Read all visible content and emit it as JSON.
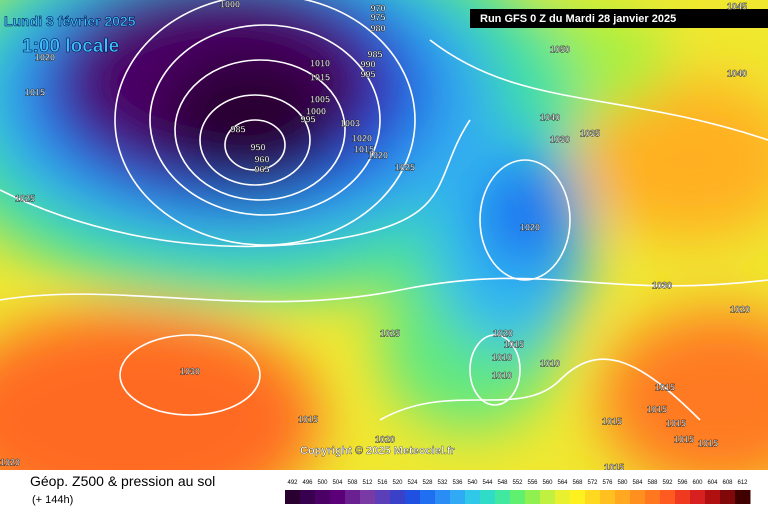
{
  "header": {
    "date": "Lundi 3 février 2025",
    "time": "1:00 locale",
    "run": "Run GFS 0 Z du Mardi 28 janvier 2025"
  },
  "copyright": "Copyright © 2025 Meteociel.fr",
  "footer": {
    "title": "Géop. Z500 & pression au sol",
    "subtitle": "(+ 144h)"
  },
  "legend": {
    "labels": [
      "492",
      "496",
      "500",
      "504",
      "508",
      "512",
      "516",
      "520",
      "524",
      "528",
      "532",
      "536",
      "540",
      "544",
      "548",
      "552",
      "556",
      "560",
      "564",
      "568",
      "572",
      "576",
      "580",
      "584",
      "588",
      "592",
      "596",
      "600",
      "604",
      "608",
      "612"
    ],
    "colors": [
      "#2a0030",
      "#3a0050",
      "#4b0066",
      "#5c007a",
      "#6a2090",
      "#7a3aa6",
      "#5a3fb8",
      "#3a40c8",
      "#2050e0",
      "#1f6ff0",
      "#2a8cf5",
      "#30aaf5",
      "#30c8e8",
      "#30dcc8",
      "#40e8a0",
      "#60f070",
      "#90f050",
      "#c0f040",
      "#e8f030",
      "#fff020",
      "#ffd820",
      "#ffc020",
      "#ffa820",
      "#ff9020",
      "#ff7820",
      "#ff5a20",
      "#f03a20",
      "#d82020",
      "#b01010",
      "#800808",
      "#400000"
    ]
  },
  "isobars": [
    "1000",
    "1020",
    "1015",
    "1010",
    "1015",
    "985",
    "990",
    "995",
    "975",
    "980",
    "970",
    "1005",
    "1000",
    "995",
    "1003",
    "985",
    "950",
    "960",
    "965",
    "1020",
    "1015",
    "1020",
    "1025",
    "1025",
    "1050",
    "1040",
    "1035",
    "1030",
    "1040",
    "1045",
    "1020",
    "1030",
    "1020",
    "1025",
    "1020",
    "1015",
    "1010",
    "1010",
    "1030",
    "1010",
    "1015",
    "1015",
    "1015",
    "1015",
    "1015",
    "1015",
    "1015",
    "1020",
    "1020",
    "1015"
  ]
}
